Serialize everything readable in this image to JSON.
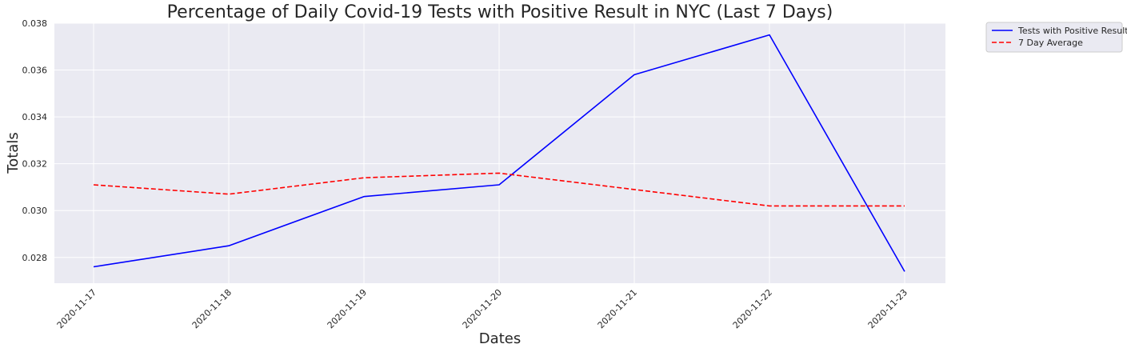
{
  "chart_data": {
    "type": "line",
    "title": "Percentage of Daily Covid-19 Tests with Positive Result in NYC (Last 7 Days)",
    "xlabel": "Dates",
    "ylabel": "Totals",
    "categories": [
      "2020-11-17",
      "2020-11-18",
      "2020-11-19",
      "2020-11-20",
      "2020-11-21",
      "2020-11-22",
      "2020-11-23"
    ],
    "ylim": [
      0.0269,
      0.038
    ],
    "yticks": [
      "0.028",
      "0.030",
      "0.032",
      "0.034",
      "0.036",
      "0.038"
    ],
    "ytick_values": [
      0.028,
      0.03,
      0.032,
      0.034,
      0.036,
      0.038
    ],
    "grid": true,
    "legend_position": "outside top-right",
    "series": [
      {
        "name": "Tests with Positive Result",
        "color": "#0000ff",
        "style": "solid",
        "values": [
          0.0276,
          0.0285,
          0.0306,
          0.0311,
          0.0358,
          0.0375,
          0.0274
        ]
      },
      {
        "name": "7 Day Average",
        "color": "#ff0000",
        "style": "dashed",
        "values": [
          0.0311,
          0.0307,
          0.0314,
          0.0316,
          0.0309,
          0.0302,
          0.0302
        ]
      }
    ]
  },
  "colors": {
    "plot_background": "#eaeaf2",
    "grid": "#ffffff"
  }
}
